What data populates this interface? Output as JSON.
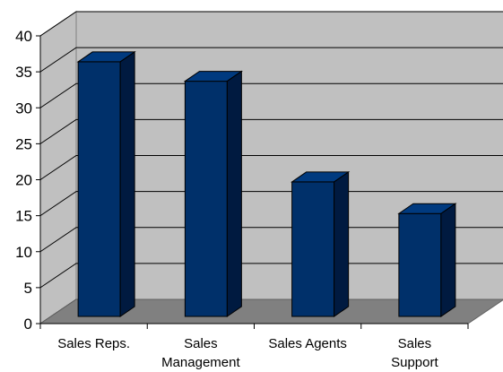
{
  "chart_data": {
    "type": "bar",
    "style": "3d-column",
    "categories": [
      [
        "Sales Reps."
      ],
      [
        "Sales",
        "Management"
      ],
      [
        "Sales Agents"
      ],
      [
        "Sales",
        "Support"
      ]
    ],
    "values": [
      35.4,
      32.7,
      18.7,
      14.3
    ],
    "ylim": [
      0,
      40
    ],
    "yticks": [
      "0",
      "5",
      "10",
      "15",
      "20",
      "25",
      "30",
      "35",
      "40"
    ],
    "grid": true,
    "colors": {
      "bar_front": "#00306a",
      "bar_top": "#003a7f",
      "bar_side": "#001a40",
      "wall": "#c0c0c0",
      "floor": "#808080",
      "gridline": "#000000"
    }
  }
}
